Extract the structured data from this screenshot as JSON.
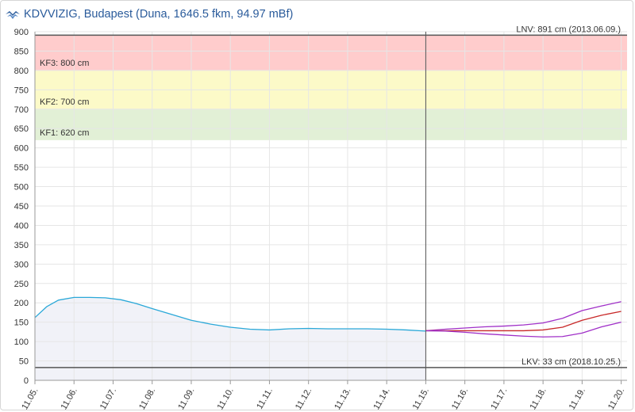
{
  "header": {
    "title": "KDVVIZIG, Budapest (Duna, 1646.5 fkm, 94.97 mBf)",
    "logo_icon": "kdvvizig-wave-logo-icon"
  },
  "chart_data": {
    "type": "line",
    "ylim": [
      0,
      900
    ],
    "yticks": [
      0,
      50,
      100,
      150,
      200,
      250,
      300,
      350,
      400,
      450,
      500,
      550,
      600,
      650,
      700,
      750,
      800,
      850,
      900
    ],
    "xlim": [
      0,
      15.15
    ],
    "xticks": [
      "11.05.",
      "11.06.",
      "11.07.",
      "11.08.",
      "11.09.",
      "11.10.",
      "11.11.",
      "11.12.",
      "11.13.",
      "11.14.",
      "11.15.",
      "11.16.",
      "11.17.",
      "11.18.",
      "11.19.",
      "11.20."
    ],
    "grid": true,
    "now_marker_x": 10,
    "bands": [
      {
        "from": 800,
        "to": 891,
        "color": "#ffcccc",
        "label": "KF3: 800 cm"
      },
      {
        "from": 700,
        "to": 800,
        "color": "#fcfac8",
        "label": "KF2: 700 cm"
      },
      {
        "from": 620,
        "to": 700,
        "color": "#e2f0d6",
        "label": "KF1: 620 cm"
      }
    ],
    "reference_lines": [
      {
        "value": 891,
        "label": "LNV: 891 cm (2013.06.09.)",
        "color": "#555555"
      },
      {
        "value": 33,
        "label": "LKV: 33 cm (2018.10.25.)",
        "color": "#555555"
      }
    ],
    "series": [
      {
        "color": "#2aa8d8",
        "fill": "#f1f2f8",
        "x": [
          0,
          0.3,
          0.6,
          1.0,
          1.4,
          1.8,
          2.2,
          2.6,
          3.0,
          3.5,
          4.0,
          4.5,
          5.0,
          5.5,
          6.0,
          6.5,
          7.0,
          7.5,
          8.0,
          8.5,
          9.0,
          9.5,
          10.0
        ],
        "y": [
          162,
          190,
          207,
          214,
          214,
          213,
          208,
          198,
          185,
          170,
          155,
          145,
          137,
          132,
          130,
          133,
          134,
          133,
          133,
          133,
          132,
          130,
          127
        ]
      },
      {
        "color": "#a030c8",
        "x": [
          10.0,
          10.5,
          11.0,
          11.5,
          12.0,
          12.5,
          13.0,
          13.5,
          14.0,
          14.5,
          15.0
        ],
        "y": [
          128,
          132,
          135,
          138,
          140,
          143,
          148,
          160,
          180,
          192,
          203
        ]
      },
      {
        "color": "#c82828",
        "x": [
          10.0,
          10.5,
          11.0,
          11.5,
          12.0,
          12.5,
          13.0,
          13.5,
          14.0,
          14.5,
          15.0
        ],
        "y": [
          128,
          128,
          128,
          128,
          128,
          128,
          130,
          137,
          155,
          168,
          178
        ]
      },
      {
        "color": "#a030c8",
        "x": [
          10.0,
          10.5,
          11.0,
          11.5,
          12.0,
          12.5,
          13.0,
          13.5,
          14.0,
          14.5,
          15.0
        ],
        "y": [
          128,
          127,
          124,
          120,
          117,
          114,
          112,
          113,
          122,
          138,
          150
        ]
      }
    ]
  }
}
